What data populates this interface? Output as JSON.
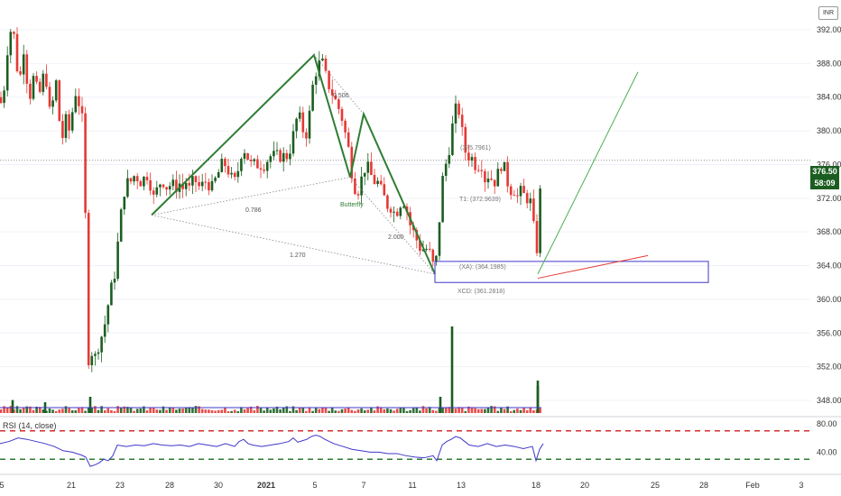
{
  "header": {
    "currency": "INR"
  },
  "price_axis": {
    "ticks": [
      "392.00",
      "388.00",
      "384.00",
      "380.00",
      "376.00",
      "372.00",
      "368.00",
      "364.00",
      "360.00",
      "356.00",
      "352.00",
      "348.00"
    ],
    "last_price": "376.50",
    "countdown": "58:09"
  },
  "rsi_axis": {
    "ticks": [
      "80.00",
      "40.00"
    ]
  },
  "rsi_label": "RSI (14, close)",
  "time_axis": {
    "ticks": [
      "5",
      "21",
      "23",
      "28",
      "30",
      "2021",
      "5",
      "7",
      "11",
      "13",
      "18",
      "20",
      "25",
      "28",
      "Feb",
      "3"
    ]
  },
  "annotations": {
    "fib_0500": "0.500",
    "fib_0786": "0.786",
    "fib_1270": "1.270",
    "fib_2000": "2.000",
    "pattern": "Butterfly",
    "target_1": "(375.7961)",
    "target_t1": "T1: (372.9639)",
    "xa_level": "(XA): (364.1985)",
    "xcd_level": "XCD: (361.2818)"
  },
  "colors": {
    "up": "#1b5e20",
    "down": "#e53935",
    "pattern": "#2e7d32",
    "projection": "#4caf50",
    "zone": "#3f37c9",
    "rsi": "#3f37c9",
    "rsi_levels": [
      "#d32f2f",
      "#2e7d32"
    ],
    "price_tag": "#1b5e20",
    "countdown_tag": "#1b5e20"
  },
  "chart_data": {
    "type": "candlestick",
    "y_range": [
      346.5,
      395.0
    ],
    "last_close": 376.5,
    "close_path": [
      [
        0,
        384
      ],
      [
        3,
        382
      ],
      [
        6,
        388
      ],
      [
        10,
        391
      ],
      [
        14,
        393
      ],
      [
        18,
        388
      ],
      [
        22,
        386
      ],
      [
        26,
        390
      ],
      [
        30,
        386
      ],
      [
        34,
        384
      ],
      [
        38,
        387
      ],
      [
        42,
        384
      ],
      [
        46,
        385
      ],
      [
        50,
        388
      ],
      [
        54,
        382
      ],
      [
        58,
        383
      ],
      [
        62,
        386
      ],
      [
        66,
        381
      ],
      [
        70,
        379
      ],
      [
        74,
        382
      ],
      [
        78,
        379
      ],
      [
        82,
        385
      ],
      [
        86,
        384
      ],
      [
        90,
        382
      ],
      [
        93,
        380
      ],
      [
        96,
        361
      ],
      [
        99,
        350
      ],
      [
        102,
        354
      ],
      [
        106,
        353
      ],
      [
        110,
        355
      ],
      [
        114,
        356
      ],
      [
        118,
        358
      ],
      [
        122,
        361
      ],
      [
        126,
        362
      ],
      [
        130,
        366
      ],
      [
        134,
        370
      ],
      [
        138,
        373
      ],
      [
        142,
        374
      ],
      [
        146,
        374
      ],
      [
        150,
        375
      ],
      [
        154,
        374
      ],
      [
        158,
        374
      ],
      [
        162,
        375
      ],
      [
        166,
        374
      ],
      [
        170,
        372
      ],
      [
        174,
        373
      ],
      [
        178,
        374
      ],
      [
        182,
        374
      ],
      [
        186,
        373
      ],
      [
        190,
        374
      ],
      [
        194,
        373
      ],
      [
        198,
        374
      ],
      [
        202,
        373
      ],
      [
        206,
        374
      ],
      [
        210,
        373
      ],
      [
        214,
        374
      ],
      [
        218,
        374
      ],
      [
        222,
        373
      ],
      [
        226,
        374
      ],
      [
        230,
        374
      ],
      [
        234,
        373
      ],
      [
        238,
        374
      ],
      [
        242,
        375
      ],
      [
        246,
        376
      ],
      [
        250,
        376
      ],
      [
        254,
        375
      ],
      [
        258,
        374
      ],
      [
        262,
        374
      ],
      [
        266,
        377
      ],
      [
        270,
        378
      ],
      [
        274,
        377
      ],
      [
        278,
        376
      ],
      [
        282,
        376
      ],
      [
        286,
        376
      ],
      [
        290,
        376
      ],
      [
        294,
        376
      ],
      [
        298,
        377
      ],
      [
        302,
        377
      ],
      [
        306,
        377
      ],
      [
        310,
        377
      ],
      [
        314,
        377
      ],
      [
        318,
        377
      ],
      [
        322,
        378
      ],
      [
        326,
        380
      ],
      [
        330,
        382
      ],
      [
        334,
        381
      ],
      [
        338,
        379
      ],
      [
        342,
        381
      ],
      [
        346,
        385
      ],
      [
        350,
        387
      ],
      [
        354,
        388
      ],
      [
        358,
        388
      ],
      [
        362,
        386
      ],
      [
        366,
        385
      ],
      [
        370,
        384
      ],
      [
        374,
        383
      ],
      [
        378,
        382
      ],
      [
        382,
        380
      ],
      [
        386,
        378
      ],
      [
        390,
        375
      ],
      [
        394,
        373
      ],
      [
        398,
        373
      ],
      [
        402,
        375
      ],
      [
        406,
        376
      ],
      [
        410,
        375
      ],
      [
        414,
        374
      ],
      [
        418,
        374
      ],
      [
        422,
        373
      ],
      [
        426,
        372
      ],
      [
        430,
        371
      ],
      [
        434,
        371
      ],
      [
        438,
        370
      ],
      [
        442,
        371
      ],
      [
        446,
        372
      ],
      [
        450,
        371
      ],
      [
        454,
        369
      ],
      [
        458,
        368
      ],
      [
        462,
        367
      ],
      [
        466,
        366
      ],
      [
        470,
        366
      ],
      [
        474,
        366
      ],
      [
        478,
        365
      ],
      [
        482,
        363
      ],
      [
        486,
        368
      ],
      [
        490,
        374
      ],
      [
        494,
        376
      ],
      [
        498,
        378
      ],
      [
        502,
        381
      ],
      [
        506,
        383
      ],
      [
        510,
        382
      ],
      [
        514,
        378
      ],
      [
        518,
        377
      ],
      [
        522,
        377
      ],
      [
        526,
        376
      ],
      [
        530,
        376
      ],
      [
        534,
        376
      ],
      [
        538,
        374
      ],
      [
        542,
        375
      ],
      [
        546,
        374
      ],
      [
        550,
        374
      ],
      [
        554,
        376
      ],
      [
        558,
        376
      ],
      [
        562,
        374
      ],
      [
        566,
        373
      ],
      [
        570,
        373
      ],
      [
        574,
        372
      ],
      [
        578,
        373
      ],
      [
        582,
        372
      ],
      [
        586,
        372
      ],
      [
        590,
        371
      ],
      [
        594,
        364
      ],
      [
        598,
        372
      ],
      [
        602,
        376.5
      ]
    ],
    "volume_spikes": [
      [
        501,
        8
      ],
      [
        596,
        3
      ],
      [
        488,
        1.5
      ],
      [
        14,
        1.2
      ],
      [
        50,
        1
      ],
      [
        100,
        1.5
      ],
      [
        596,
        2.5
      ]
    ],
    "harmonic_pattern": {
      "name": "Butterfly",
      "points": [
        [
          168,
          370
        ],
        [
          348,
          389
        ],
        [
          388,
          374.5
        ],
        [
          403,
          382
        ],
        [
          482,
          363
        ]
      ]
    },
    "projection_line": [
      [
        596,
        363
      ],
      [
        707,
        387
      ]
    ],
    "red_trendline": [
      [
        596,
        362.5
      ],
      [
        718,
        365.2
      ]
    ],
    "target_zone": {
      "x": [
        482,
        785
      ],
      "y": [
        362,
        364.5
      ]
    },
    "rsi": {
      "levels": [
        70,
        30
      ],
      "scale": [
        10,
        90
      ],
      "series": [
        [
          0,
          52
        ],
        [
          10,
          55
        ],
        [
          20,
          60
        ],
        [
          30,
          58
        ],
        [
          40,
          55
        ],
        [
          50,
          52
        ],
        [
          60,
          48
        ],
        [
          70,
          42
        ],
        [
          80,
          40
        ],
        [
          90,
          36
        ],
        [
          95,
          33
        ],
        [
          100,
          20
        ],
        [
          105,
          22
        ],
        [
          110,
          25
        ],
        [
          115,
          30
        ],
        [
          120,
          28
        ],
        [
          125,
          35
        ],
        [
          130,
          50
        ],
        [
          140,
          48
        ],
        [
          150,
          50
        ],
        [
          160,
          49
        ],
        [
          170,
          52
        ],
        [
          180,
          50
        ],
        [
          190,
          49
        ],
        [
          200,
          50
        ],
        [
          210,
          48
        ],
        [
          220,
          52
        ],
        [
          230,
          50
        ],
        [
          240,
          48
        ],
        [
          250,
          52
        ],
        [
          260,
          48
        ],
        [
          265,
          55
        ],
        [
          270,
          58
        ],
        [
          275,
          52
        ],
        [
          280,
          50
        ],
        [
          290,
          48
        ],
        [
          300,
          50
        ],
        [
          310,
          52
        ],
        [
          320,
          55
        ],
        [
          325,
          60
        ],
        [
          330,
          54
        ],
        [
          335,
          56
        ],
        [
          340,
          58
        ],
        [
          345,
          62
        ],
        [
          350,
          64
        ],
        [
          355,
          62
        ],
        [
          360,
          58
        ],
        [
          370,
          52
        ],
        [
          380,
          48
        ],
        [
          390,
          44
        ],
        [
          400,
          42
        ],
        [
          410,
          40
        ],
        [
          420,
          40
        ],
        [
          430,
          38
        ],
        [
          440,
          38
        ],
        [
          450,
          35
        ],
        [
          460,
          33
        ],
        [
          470,
          32
        ],
        [
          480,
          35
        ],
        [
          484,
          28
        ],
        [
          490,
          50
        ],
        [
          495,
          55
        ],
        [
          500,
          58
        ],
        [
          505,
          62
        ],
        [
          510,
          60
        ],
        [
          515,
          55
        ],
        [
          520,
          50
        ],
        [
          530,
          48
        ],
        [
          540,
          52
        ],
        [
          550,
          48
        ],
        [
          560,
          50
        ],
        [
          570,
          48
        ],
        [
          580,
          45
        ],
        [
          590,
          48
        ],
        [
          594,
          28
        ],
        [
          598,
          44
        ],
        [
          602,
          52
        ]
      ]
    }
  }
}
